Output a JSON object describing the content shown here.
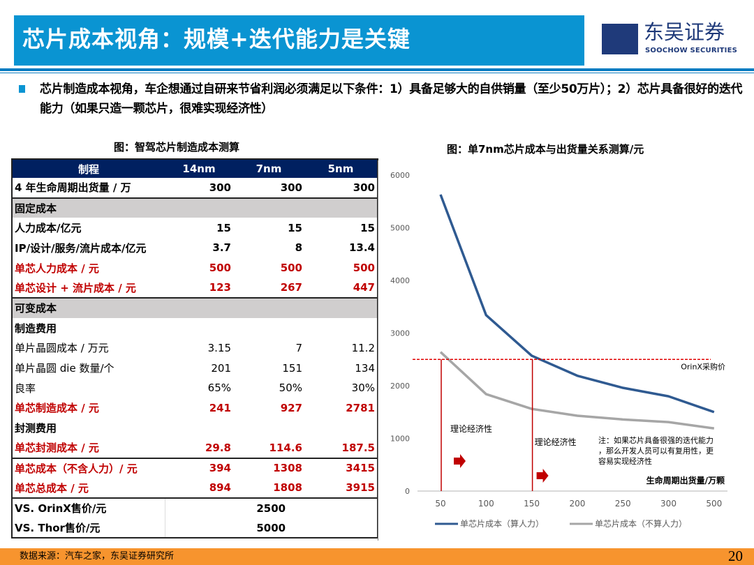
{
  "header": {
    "title": "芯片成本视角：规模+迭代能力是关键",
    "logo_cn": "东吴证券",
    "logo_en": "SOOCHOW SECURITIES"
  },
  "intro": "芯片制造成本视角，车企想通过自研来节省利润必须满足以下条件：1）具备足够大的自供销量（至少50万片）；2）芯片具备很好的迭代能力（如果只造一颗芯片，很难实现经济性）",
  "table": {
    "caption": "图：智驾芯片制造成本测算",
    "headers": [
      "制程",
      "14nm",
      "7nm",
      "5nm"
    ],
    "rows": [
      {
        "style": "bold",
        "cells": [
          "4 年生命周期出货量 / 万",
          "300",
          "300",
          "300"
        ]
      },
      {
        "style": "sec bt",
        "cells": [
          "固定成本",
          "",
          "",
          ""
        ]
      },
      {
        "style": "bold",
        "cells": [
          "人力成本/亿元",
          "15",
          "15",
          "15"
        ]
      },
      {
        "style": "bold",
        "cells": [
          "IP/设计/服务/流片成本/亿元",
          "3.7",
          "8",
          "13.4"
        ]
      },
      {
        "style": "red",
        "cells": [
          "单芯人力成本 / 元",
          "500",
          "500",
          "500"
        ]
      },
      {
        "style": "red",
        "cells": [
          "单芯设计 + 流片成本 / 元",
          "123",
          "267",
          "447"
        ]
      },
      {
        "style": "sec bt",
        "cells": [
          "可变成本",
          "",
          "",
          ""
        ]
      },
      {
        "style": "bold",
        "cells": [
          "制造费用",
          "",
          "",
          ""
        ]
      },
      {
        "style": "",
        "cells": [
          "单片晶圆成本 / 万元",
          "3.15",
          "7",
          "11.2"
        ]
      },
      {
        "style": "",
        "cells": [
          "单片晶圆 die 数量/个",
          "201",
          "151",
          "134"
        ]
      },
      {
        "style": "",
        "cells": [
          "良率",
          "65%",
          "50%",
          "30%"
        ]
      },
      {
        "style": "red",
        "cells": [
          "单芯制造成本 / 元",
          "241",
          "927",
          "2781"
        ]
      },
      {
        "style": "bold",
        "cells": [
          "封测费用",
          "",
          "",
          ""
        ]
      },
      {
        "style": "red",
        "cells": [
          "单芯封测成本 / 元",
          "29.8",
          "114.6",
          "187.5"
        ]
      },
      {
        "style": "red bt",
        "cells": [
          "单芯成本（不含人力）/ 元",
          "394",
          "1308",
          "3415"
        ]
      },
      {
        "style": "red",
        "cells": [
          "单芯总成本 / 元",
          "894",
          "1808",
          "3915"
        ]
      }
    ],
    "vs_rows": [
      [
        "VS. OrinX售价/元",
        "2500"
      ],
      [
        "VS. Thor售价/元",
        "5000"
      ]
    ]
  },
  "chart_data": {
    "type": "line",
    "title": "图：单7nm芯片成本与出货量关系测算/元",
    "xlabel": "生命周期出货量/万颗",
    "ylabel": "",
    "categories": [
      "50",
      "100",
      "150",
      "200",
      "250",
      "300",
      "500"
    ],
    "ylim": [
      0,
      6000
    ],
    "yticks": [
      "0",
      "1000",
      "2000",
      "3000",
      "4000",
      "5000",
      "6000"
    ],
    "series": [
      {
        "name": "单芯片成本（算人力）",
        "color": "#2F5A91",
        "values": [
          5630,
          3340,
          2570,
          2190,
          1960,
          1800,
          1500
        ]
      },
      {
        "name": "单芯片成本（不算人力）",
        "color": "#A6A6A6",
        "values": [
          2640,
          1840,
          1560,
          1430,
          1360,
          1310,
          1190
        ]
      }
    ],
    "reference_line": {
      "value": 2500,
      "label": "OrinX采购价",
      "color": "#E00000"
    },
    "markers": [
      {
        "x": "50",
        "label": "理论经济性"
      },
      {
        "x": "150",
        "label": "理论经济性"
      }
    ],
    "note": [
      "注：如果芯片具备很强的迭代能力",
      "，那么开发人员可以有复用性，更",
      "容易实现经济性"
    ],
    "legend_position": "bottom"
  },
  "footer": {
    "source": "数据来源：汽车之家，东吴证券研究所",
    "page": "20"
  }
}
